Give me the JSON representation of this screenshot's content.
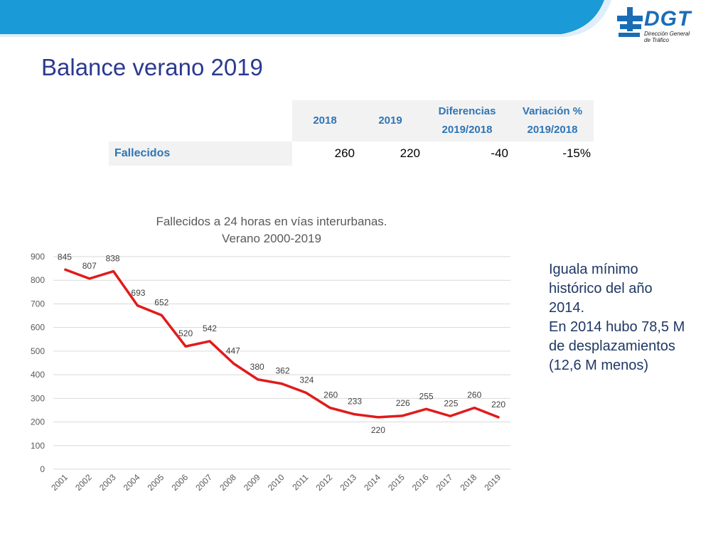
{
  "page": {
    "title": "Balance verano 2019"
  },
  "logo": {
    "name": "dgt-logo",
    "brand": "DGT",
    "subtitle_line1": "Dirección General",
    "subtitle_line2": "de Tráfico"
  },
  "summary_table": {
    "headers": [
      "",
      "2018",
      "2019",
      "Diferencias 2019/2018",
      "Variación % 2019/2018"
    ],
    "header_lines": {
      "col3": [
        "Diferencias",
        "2019/2018"
      ],
      "col4": [
        "Variación %",
        "2019/2018"
      ]
    },
    "rows": [
      {
        "label": "Fallecidos",
        "values": [
          "260",
          "220",
          "-40",
          "-15%"
        ]
      }
    ]
  },
  "note": {
    "lines": [
      "Iguala mínimo",
      "histórico del año",
      "2014.",
      "En 2014 hubo 78,5 M",
      "de desplazamientos",
      "(12,6 M menos)"
    ]
  },
  "colors": {
    "title": "#2b3990",
    "accent_blue": "#1a9ad6",
    "line": "#e01b1b",
    "header_text": "#2e75b6",
    "note_text": "#1f3864"
  },
  "chart_data": {
    "type": "line",
    "title_lines": [
      "Fallecidos a 24 horas en vías interurbanas.",
      "Verano 2000-2019"
    ],
    "categories": [
      "2001",
      "2002",
      "2003",
      "2004",
      "2005",
      "2006",
      "2007",
      "2008",
      "2009",
      "2010",
      "2011",
      "2012",
      "2013",
      "2014",
      "2015",
      "2016",
      "2017",
      "2018",
      "2019"
    ],
    "series": [
      {
        "values": [
          845,
          807,
          838,
          693,
          652,
          520,
          542,
          447,
          380,
          362,
          324,
          260,
          233,
          220,
          226,
          255,
          225,
          260,
          220
        ]
      }
    ],
    "ylim": [
      0,
      900
    ],
    "yticks": [
      0,
      100,
      200,
      300,
      400,
      500,
      600,
      700,
      800,
      900
    ],
    "grid": true,
    "data_labels": true
  }
}
